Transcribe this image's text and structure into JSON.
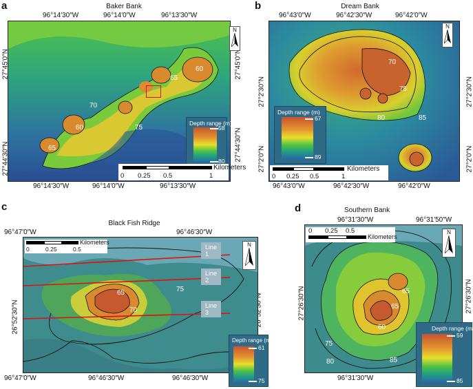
{
  "panels": {
    "a": {
      "label": "a",
      "title": "Baker Bank",
      "top_lons": [
        "96°14′30″W",
        "96°14′0″W",
        "96°13′30″W"
      ],
      "bottom_lons": [
        "96°14′30″W",
        "96°14′0″W",
        "96°13′30″W"
      ],
      "left_lats": [
        "27°45′0″N",
        "27°44′30″N"
      ],
      "right_lats": [
        "27°45′0″N",
        "27°44′30″N"
      ],
      "contours": [
        "60",
        "65",
        "70",
        "60",
        "65",
        "75"
      ],
      "legend": {
        "title": "Depth range (m)",
        "top": "58",
        "bottom": "80"
      },
      "scale": {
        "labels": [
          "0",
          "0.25",
          "0.5",
          "1"
        ],
        "unit": "Kilometers"
      },
      "north": "N"
    },
    "b": {
      "label": "b",
      "title": "Dream Bank",
      "top_lons": [
        "96°43′0″W",
        "96°42′30″W",
        "96°42′0″W"
      ],
      "bottom_lons": [
        "96°43′0″W",
        "96°42′30″W",
        "96°42′0″W"
      ],
      "left_lats": [
        "27°2′30″N",
        "27°2′0″N"
      ],
      "right_lats": [
        "27°2′30″N",
        "27°2′0″N"
      ],
      "contours": [
        "70",
        "75",
        "80",
        "85"
      ],
      "legend": {
        "title": "Depth range (m)",
        "top": "67",
        "bottom": "89"
      },
      "scale": {
        "labels": [
          "0",
          "0.25",
          "0.5",
          "1"
        ],
        "unit": "Kilometers"
      },
      "north": "N"
    },
    "c": {
      "label": "c",
      "title": "Black Fish Ridge",
      "top_lons": [
        "96°47′0″W",
        "96°46′30″W"
      ],
      "bottom_lons": [
        "96°47′0″W",
        "96°46′30″W",
        "96°46′30″W"
      ],
      "left_lats": [
        "26°52′30″N"
      ],
      "right_lats": [
        "26°52′30″N"
      ],
      "contours": [
        "65",
        "70",
        "75"
      ],
      "lines": [
        "Line 1",
        "Line 2",
        "Line 3"
      ],
      "legend": {
        "title": "Depth range (m)",
        "top": "61",
        "bottom": "75"
      },
      "scale": {
        "labels": [
          "0",
          "0.25",
          "0.5"
        ],
        "unit": "Kilometers"
      },
      "north": "N"
    },
    "d": {
      "label": "d",
      "title": "Southern Bank",
      "top_lons": [
        "96°31′30″W",
        "96°31′50″W"
      ],
      "bottom_lons": [
        "96°31′30″W"
      ],
      "left_lats": [
        "27°26′30″N"
      ],
      "right_lats": [
        "27°26′30″N"
      ],
      "contours": [
        "65",
        "60",
        "65",
        "75",
        "80",
        "85"
      ],
      "legend": {
        "title": "Depth range (m)",
        "top": "59",
        "bottom": "85"
      },
      "scale": {
        "labels": [
          "0",
          "0.25",
          "0.5"
        ],
        "unit": "Kilometers"
      },
      "north": "N"
    }
  }
}
